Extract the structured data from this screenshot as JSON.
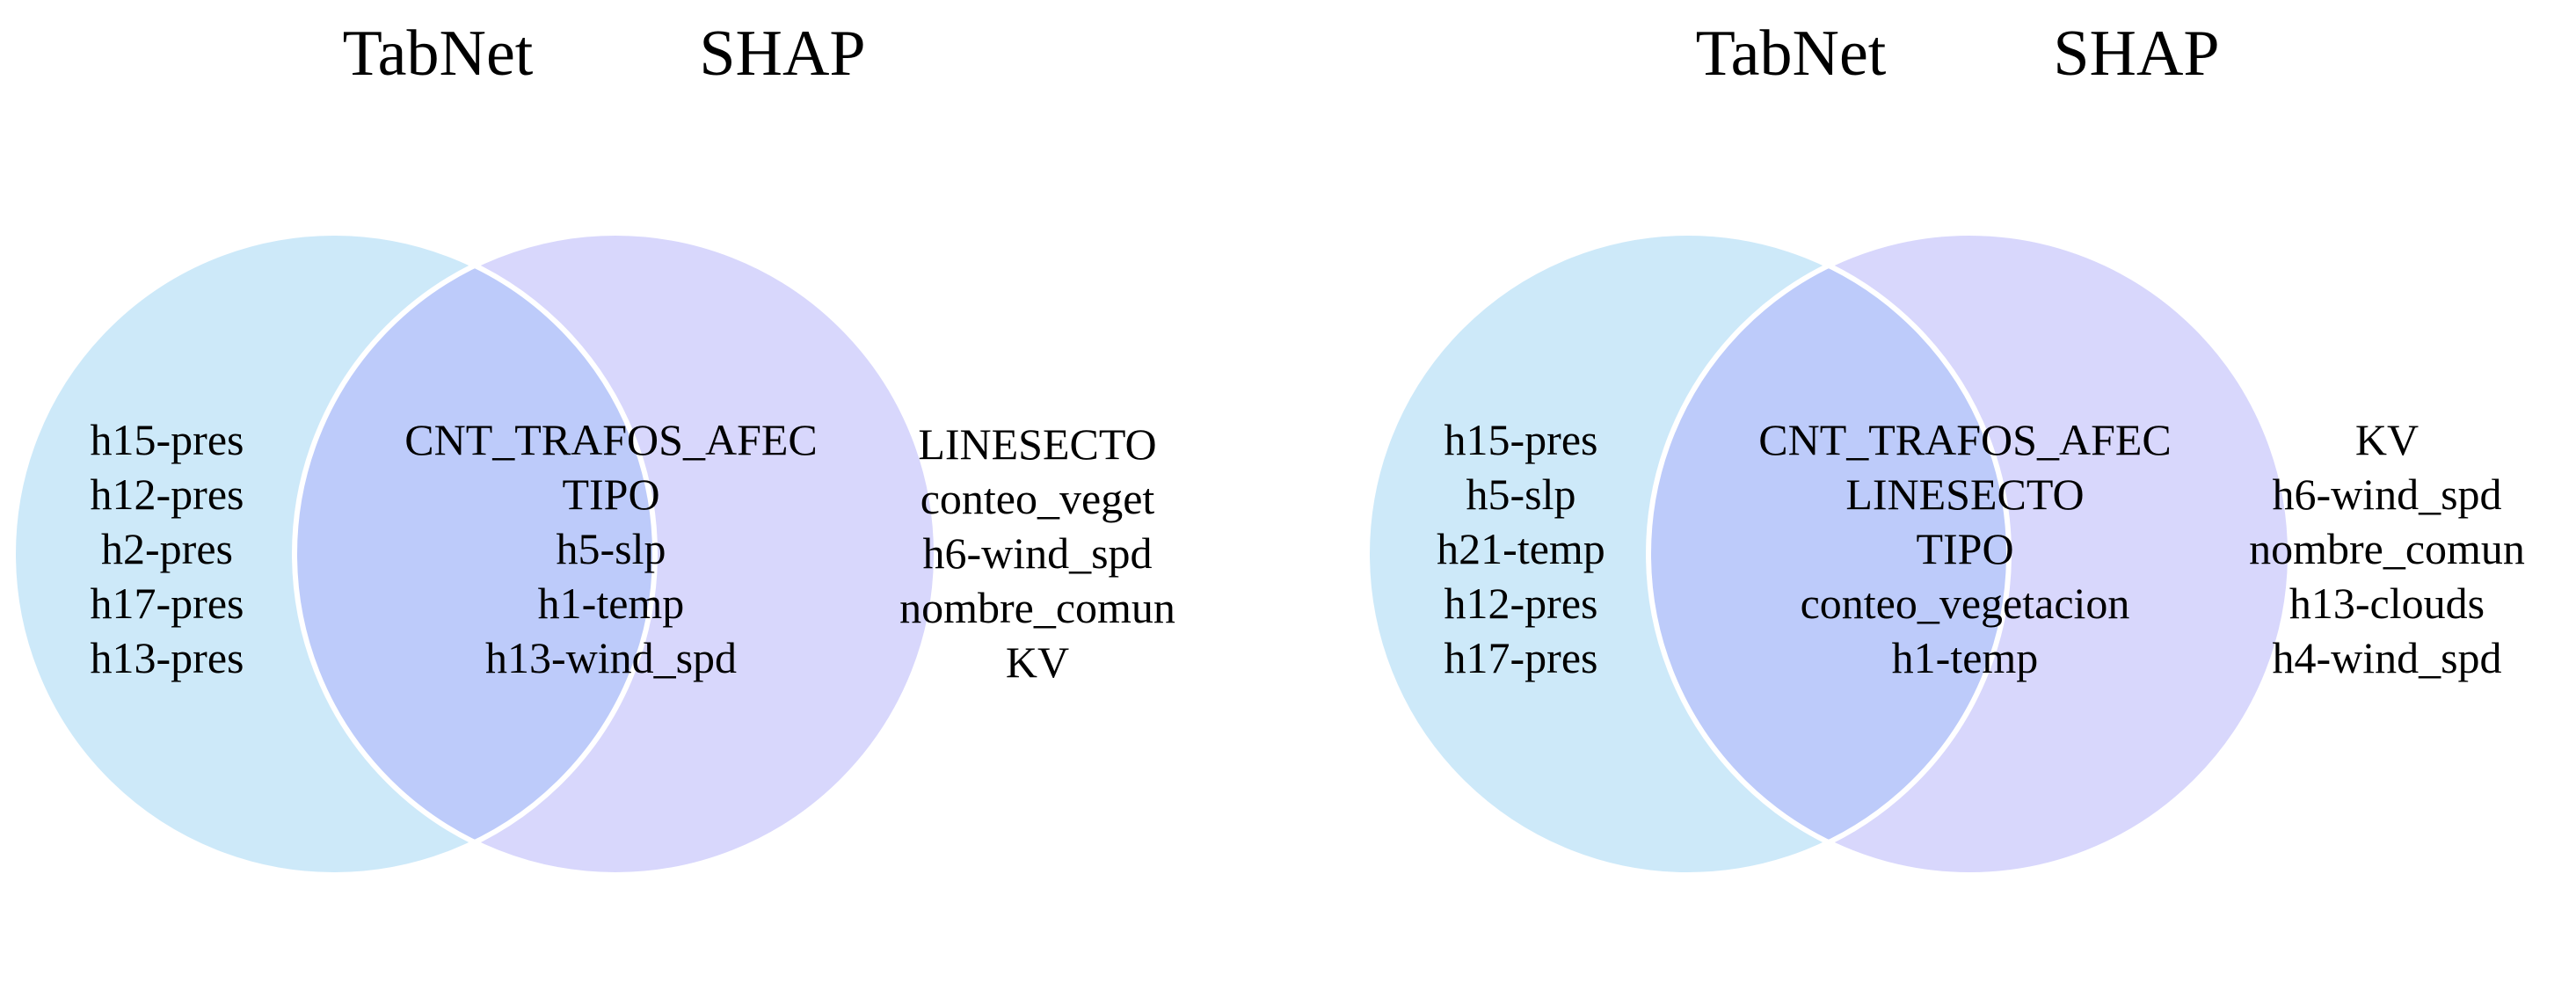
{
  "colors": {
    "left_fill": "#cde9f9",
    "right_fill": "#d8d7fc",
    "overlap_fill": "#bdcbfa",
    "outline": "#ffffff"
  },
  "diagrams": [
    {
      "left_label": "TabNet",
      "right_label": "SHAP",
      "left_only": [
        "h15-pres",
        "h12-pres",
        "h2-pres",
        "h17-pres",
        "h13-pres"
      ],
      "both": [
        "CNT_TRAFOS_AFEC",
        "TIPO",
        "h5-slp",
        "h1-temp",
        "h13-wind_spd"
      ],
      "right_only": [
        "LINESECTO",
        "conteo_veget",
        "h6-wind_spd",
        "nombre_comun",
        "KV"
      ]
    },
    {
      "left_label": "TabNet",
      "right_label": "SHAP",
      "left_only": [
        "h15-pres",
        "h5-slp",
        "h21-temp",
        "h12-pres",
        "h17-pres"
      ],
      "both": [
        "CNT_TRAFOS_AFEC",
        "LINESECTO",
        "TIPO",
        "conteo_vegetacion",
        "h1-temp"
      ],
      "right_only": [
        "KV",
        "h6-wind_spd",
        "nombre_comun",
        "h13-clouds",
        "h4-wind_spd"
      ]
    }
  ]
}
